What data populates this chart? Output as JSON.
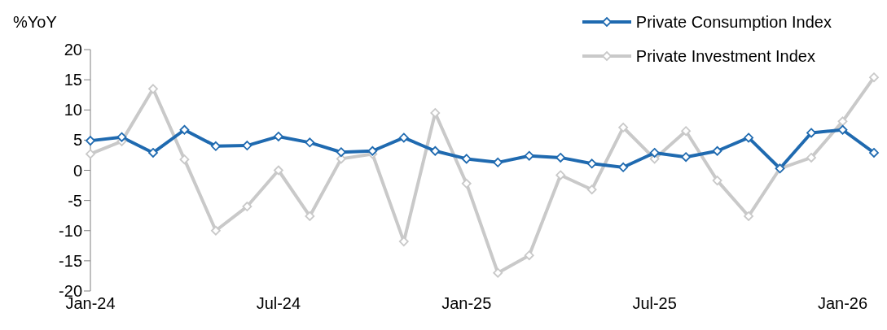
{
  "chart_data": {
    "type": "line",
    "ylabel": "%YoY",
    "categories": [
      "Jan-24",
      null,
      null,
      null,
      null,
      null,
      "Jul-24",
      null,
      null,
      null,
      null,
      null,
      "Jan-25",
      null,
      null,
      null,
      null,
      null,
      "Jul-25",
      null,
      null,
      null,
      null,
      null,
      "Jan-26",
      null
    ],
    "series": [
      {
        "name": "Private Consumption Index",
        "color": "#1f6ab0",
        "values": [
          4.9,
          5.5,
          2.9,
          6.7,
          4.0,
          4.1,
          5.6,
          4.6,
          3.0,
          3.2,
          5.4,
          3.2,
          1.9,
          1.3,
          2.4,
          2.1,
          1.1,
          0.5,
          2.9,
          2.2,
          3.2,
          5.4,
          0.3,
          6.2,
          6.7,
          2.9
        ]
      },
      {
        "name": "Private Investment Index",
        "color": "#c9c9c9",
        "values": [
          2.7,
          4.8,
          13.5,
          1.8,
          -10.0,
          -6.0,
          0,
          -7.6,
          1.9,
          2.7,
          -11.8,
          9.5,
          -2.2,
          -17.0,
          -14.1,
          -0.8,
          -3.2,
          7.1,
          1.9,
          6.5,
          -1.7,
          -7.6,
          0.3,
          2.1,
          8.1,
          15.4
        ]
      }
    ],
    "ylim": [
      -20,
      20
    ],
    "yticks": [
      -20,
      -15,
      -10,
      -5,
      0,
      5,
      10,
      15,
      20
    ],
    "legend": "top right",
    "marker": "diamond",
    "line_style": "solid"
  }
}
